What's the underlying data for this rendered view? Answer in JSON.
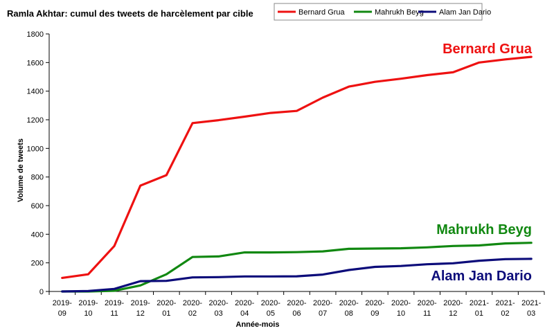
{
  "chart_data": {
    "type": "line",
    "title": "Ramla Akhtar: cumul des tweets de harcèlement par cible",
    "xlabel": "Année-mois",
    "ylabel": "Volume de tweets",
    "ylim": [
      0,
      1800
    ],
    "yticks": [
      0,
      200,
      400,
      600,
      800,
      1000,
      1200,
      1400,
      1600,
      1800
    ],
    "grid": false,
    "legend_position": "top",
    "categories": [
      [
        "2019-",
        "09"
      ],
      [
        "2019-",
        "10"
      ],
      [
        "2019-",
        "11"
      ],
      [
        "2019-",
        "12"
      ],
      [
        "2020-",
        "01"
      ],
      [
        "2020-",
        "02"
      ],
      [
        "2020-",
        "03"
      ],
      [
        "2020-",
        "04"
      ],
      [
        "2020-",
        "05"
      ],
      [
        "2020-",
        "06"
      ],
      [
        "2020-",
        "07"
      ],
      [
        "2020-",
        "08"
      ],
      [
        "2020-",
        "09"
      ],
      [
        "2020-",
        "10"
      ],
      [
        "2020-",
        "11"
      ],
      [
        "2020-",
        "12"
      ],
      [
        "2021-",
        "01"
      ],
      [
        "2021-",
        "02"
      ],
      [
        "2021-",
        "03"
      ]
    ],
    "series": [
      {
        "name": "Bernard Grua",
        "color": "#ee1111",
        "annotation": "Bernard Grua",
        "values": [
          95,
          120,
          318,
          740,
          813,
          1177,
          1197,
          1222,
          1248,
          1262,
          1355,
          1432,
          1465,
          1487,
          1512,
          1532,
          1600,
          1622,
          1640
        ]
      },
      {
        "name": "Mahrukh Beyg",
        "color": "#118811",
        "annotation": "Mahrukh Beyg",
        "values": [
          0,
          0,
          5,
          42,
          120,
          241,
          245,
          273,
          273,
          275,
          280,
          298,
          300,
          302,
          308,
          318,
          322,
          336,
          340
        ]
      },
      {
        "name": "Alam Jan Dario",
        "color": "#0c0c7a",
        "annotation": "Alam Jan Dario",
        "values": [
          0,
          3,
          18,
          72,
          74,
          98,
          100,
          105,
          105,
          106,
          118,
          150,
          172,
          178,
          190,
          197,
          215,
          226,
          228
        ]
      }
    ]
  }
}
